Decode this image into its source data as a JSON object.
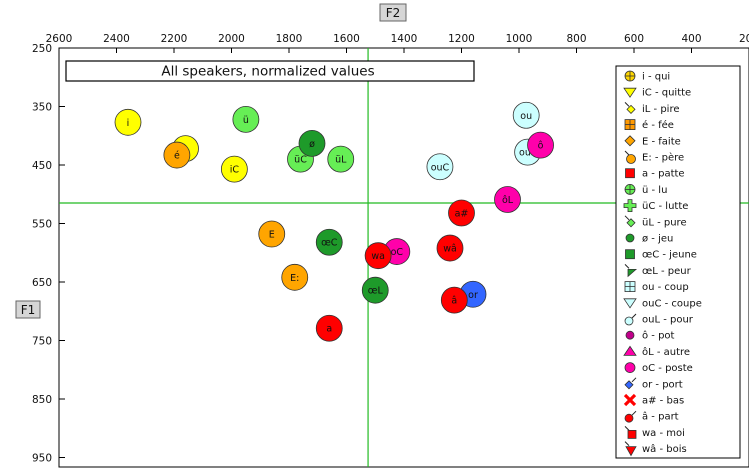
{
  "chart_data": {
    "type": "scatter",
    "title": "All speakers, normalized values",
    "xlabel": "F2",
    "ylabel": "F1",
    "xlim": [
      2600,
      2000
    ],
    "ylim": [
      250,
      950
    ],
    "x_reversed": true,
    "y_reversed": true,
    "x_ticks": [
      2600,
      2400,
      2200,
      2000,
      1800,
      1600,
      1400,
      1200,
      1000,
      800,
      600,
      400,
      200
    ],
    "y_ticks": [
      250,
      350,
      450,
      550,
      650,
      750,
      850,
      950
    ],
    "grid": false,
    "reference_lines": {
      "F2": 1525,
      "F1": 515
    },
    "legend_position": "right",
    "points": [
      {
        "label": "i",
        "F2": 2360,
        "F1": 377,
        "color": "#FFFF00"
      },
      {
        "label": "iC",
        "F2": 1990,
        "F1": 457,
        "color": "#FFFF00"
      },
      {
        "label": "iL",
        "F2": 2160,
        "F1": 422,
        "color": "#FFFF00"
      },
      {
        "label": "é",
        "F2": 2190,
        "F1": 433,
        "color": "#FFA500"
      },
      {
        "label": "E",
        "F2": 1860,
        "F1": 568,
        "color": "#FFA500"
      },
      {
        "label": "E:",
        "F2": 1780,
        "F1": 642,
        "color": "#FFA500"
      },
      {
        "label": "a",
        "F2": 1660,
        "F1": 729,
        "color": "#FF0000"
      },
      {
        "label": "ü",
        "F2": 1950,
        "F1": 372,
        "color": "#66EE55"
      },
      {
        "label": "üC",
        "F2": 1760,
        "F1": 440,
        "color": "#66EE55"
      },
      {
        "label": "üL",
        "F2": 1620,
        "F1": 440,
        "color": "#66EE55"
      },
      {
        "label": "ø",
        "F2": 1720,
        "F1": 413,
        "color": "#1E9A2A"
      },
      {
        "label": "œC",
        "F2": 1660,
        "F1": 582,
        "color": "#1E9A2A"
      },
      {
        "label": "œL",
        "F2": 1500,
        "F1": 664,
        "color": "#1E9A2A"
      },
      {
        "label": "ou",
        "F2": 975,
        "F1": 365,
        "color": "#CCFFFF"
      },
      {
        "label": "ouC",
        "F2": 1275,
        "F1": 453,
        "color": "#CCFFFF"
      },
      {
        "label": "ouL",
        "F2": 970,
        "F1": 428,
        "color": "#CCFFFF"
      },
      {
        "label": "ô",
        "F2": 925,
        "F1": 416,
        "color": "#FF00AA"
      },
      {
        "label": "ôL",
        "F2": 1040,
        "F1": 509,
        "color": "#FF00AA"
      },
      {
        "label": "oC",
        "F2": 1425,
        "F1": 598,
        "color": "#FF00AA"
      },
      {
        "label": "or",
        "F2": 1160,
        "F1": 671,
        "color": "#3366FF"
      },
      {
        "label": "a#",
        "F2": 1200,
        "F1": 532,
        "color": "#FF0000"
      },
      {
        "label": "â",
        "F2": 1225,
        "F1": 681,
        "color": "#FF0000"
      },
      {
        "label": "wa",
        "F2": 1490,
        "F1": 605,
        "color": "#FF0000"
      },
      {
        "label": "wâ",
        "F2": 1240,
        "F1": 592,
        "color": "#FF0000"
      }
    ]
  },
  "legend": [
    {
      "label": "i - qui",
      "color": "#FFD700",
      "icon": "circle-plus"
    },
    {
      "label": "iC - quitte",
      "color": "#FFFF00",
      "icon": "triangle-down"
    },
    {
      "label": "iL - pire",
      "color": "#FFFF00",
      "icon": "arrow-diamond"
    },
    {
      "label": "é - fée",
      "color": "#FF9900",
      "icon": "square-cross"
    },
    {
      "label": "E - faite",
      "color": "#FFA500",
      "icon": "diamond"
    },
    {
      "label": "E: - père",
      "color": "#FFA500",
      "icon": "arrow-circle"
    },
    {
      "label": "a - patte",
      "color": "#FF0000",
      "icon": "square"
    },
    {
      "label": "ü - lu",
      "color": "#66EE55",
      "icon": "circle-plus"
    },
    {
      "label": "üC - lutte",
      "color": "#66EE55",
      "icon": "plus"
    },
    {
      "label": "üL - pure",
      "color": "#66EE55",
      "icon": "arrow-diamond"
    },
    {
      "label": "ø - jeu",
      "color": "#1E9A2A",
      "icon": "circle-dot"
    },
    {
      "label": "œC - jeune",
      "color": "#1E9A2A",
      "icon": "square"
    },
    {
      "label": "œL - peur",
      "color": "#1E9A2A",
      "icon": "arrow-triangle"
    },
    {
      "label": "ou - coup",
      "color": "#CCFFFF",
      "icon": "square-cross"
    },
    {
      "label": "ouC - coupe",
      "color": "#CCFFFF",
      "icon": "triangle-down"
    },
    {
      "label": "ouL - pour",
      "color": "#CCFFFF",
      "icon": "circle-arrow"
    },
    {
      "label": "ô - pot",
      "color": "#C0008A",
      "icon": "circle-dot"
    },
    {
      "label": "ôL - autre",
      "color": "#FF00AA",
      "icon": "triangle-up"
    },
    {
      "label": "oC - poste",
      "color": "#FF00AA",
      "icon": "circle"
    },
    {
      "label": "or - port",
      "color": "#3366FF",
      "icon": "diamond-arrow"
    },
    {
      "label": "a# - bas",
      "color": "#FF0000",
      "icon": "x"
    },
    {
      "label": "â - part",
      "color": "#FF0000",
      "icon": "circle-arrow"
    },
    {
      "label": "wa - moi",
      "color": "#FF0000",
      "icon": "arrow-square"
    },
    {
      "label": "wâ - bois",
      "color": "#FF0000",
      "icon": "arrow-triangle-red"
    }
  ]
}
